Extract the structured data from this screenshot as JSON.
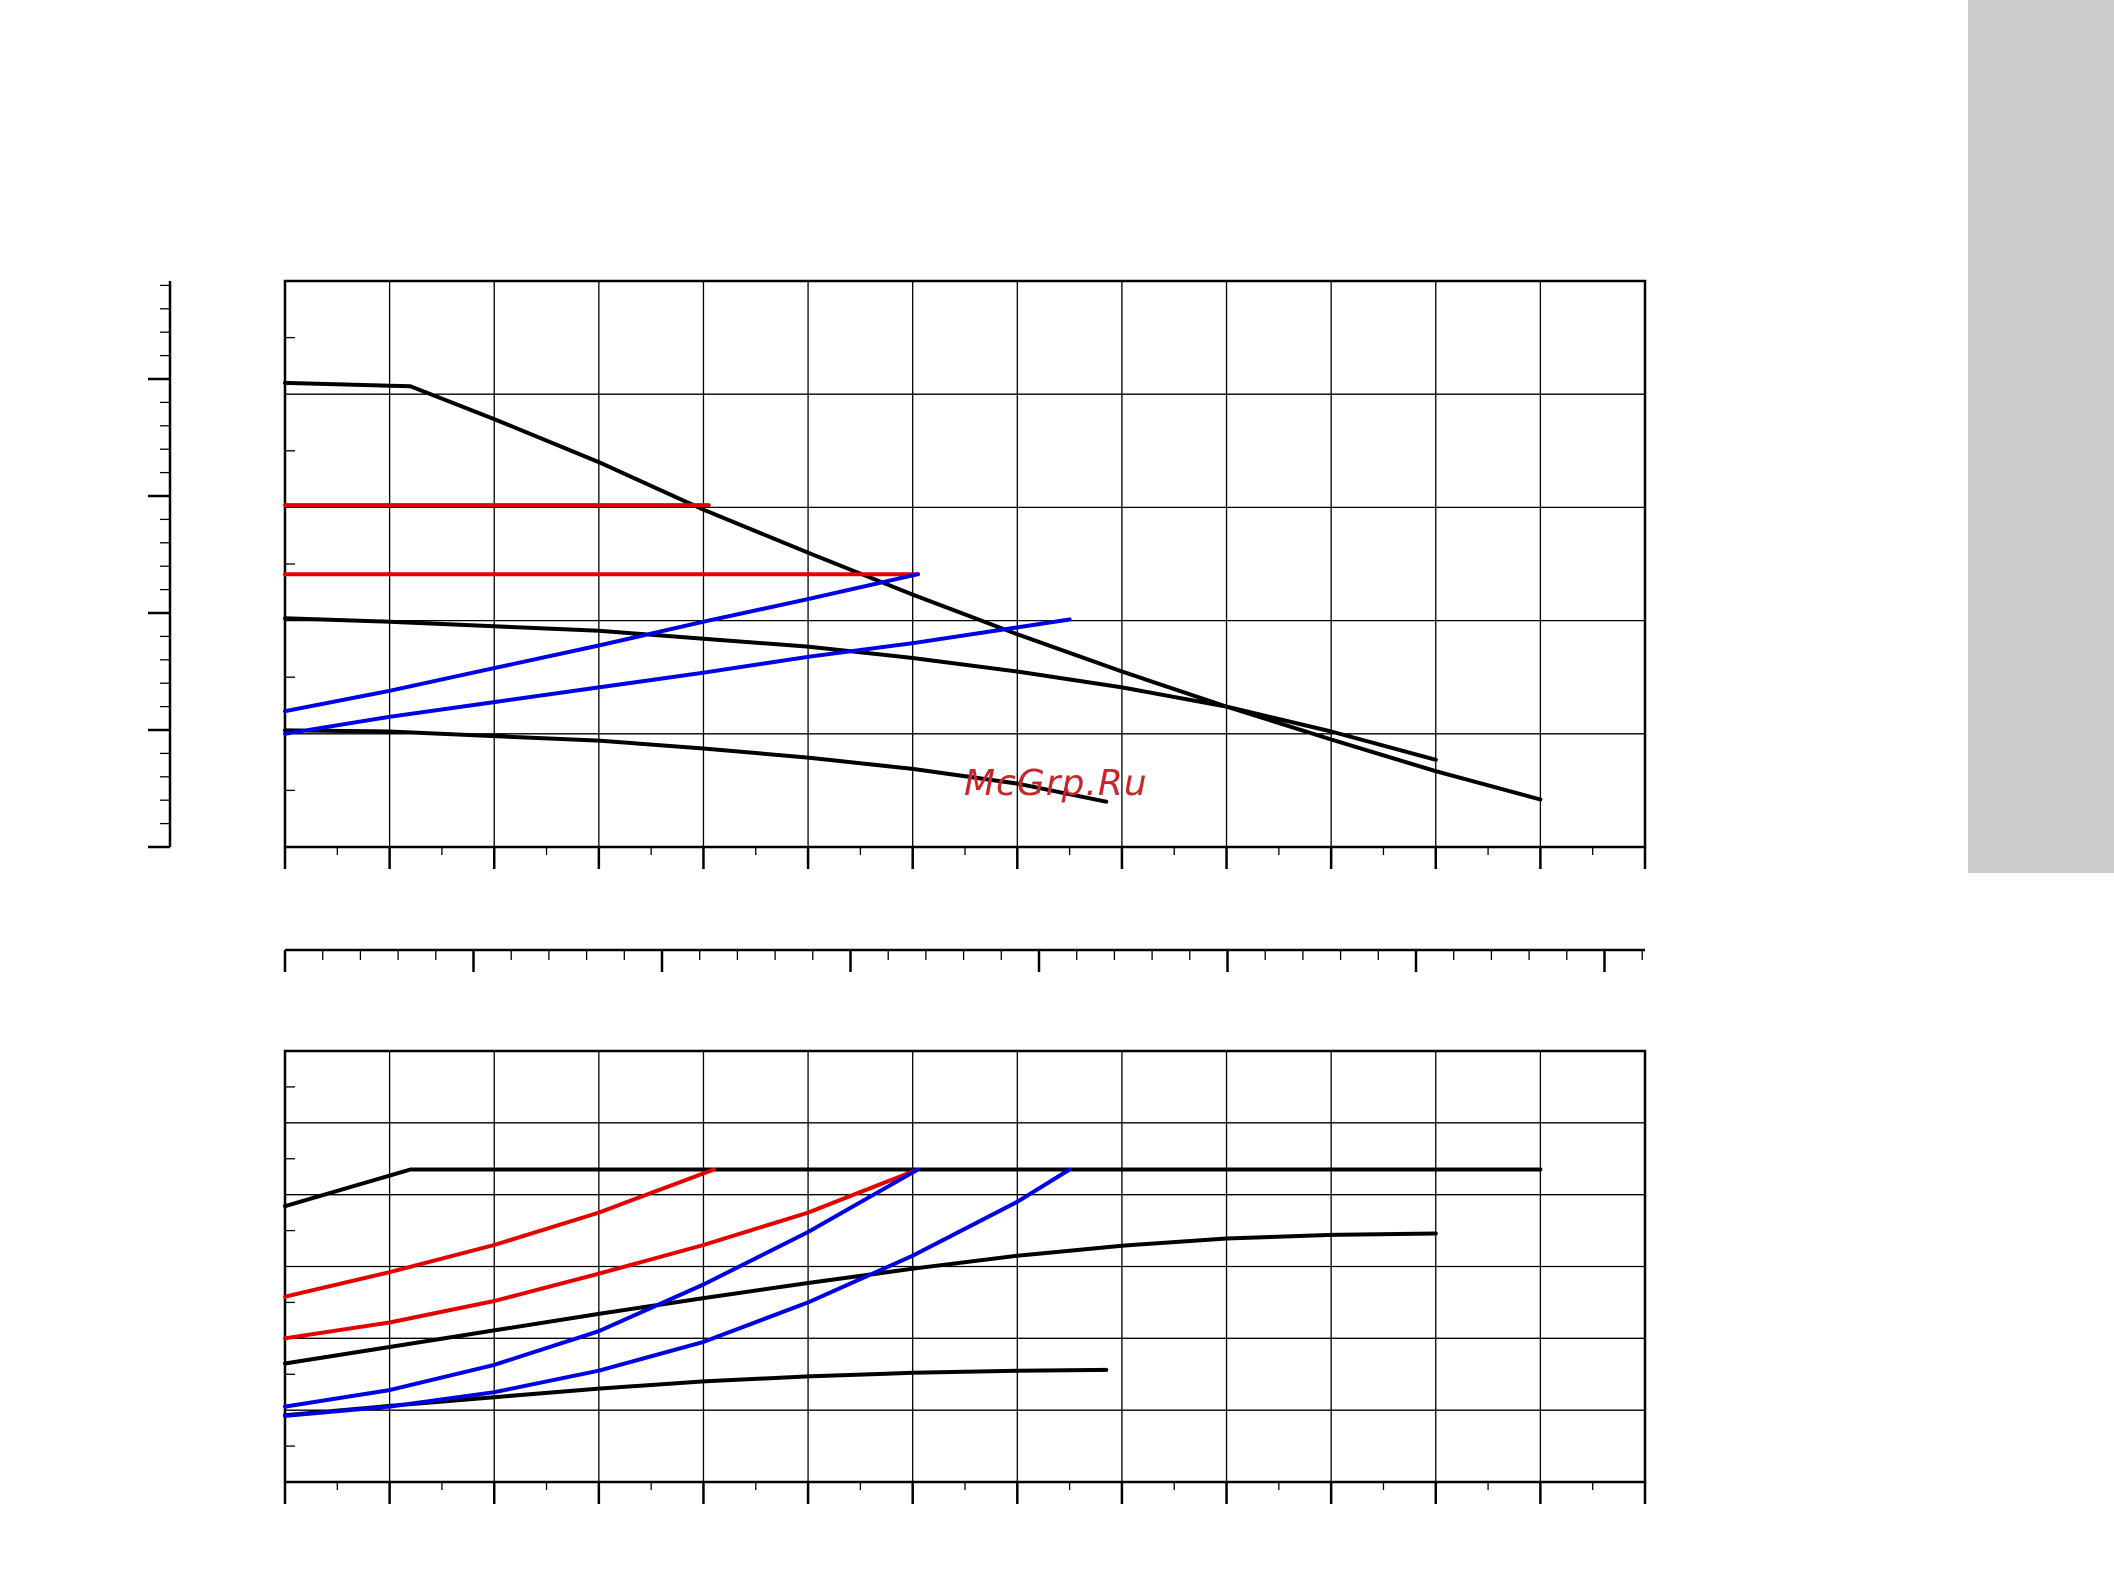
{
  "page": {
    "side_tab_color": "#cccccc",
    "watermark": "McGrp.Ru",
    "watermark_color": "#c8262b"
  },
  "chart_data": [
    {
      "type": "line",
      "title": "",
      "xlabel": "",
      "ylabel": "",
      "xlim": [
        0,
        13
      ],
      "ylim": [
        0,
        5
      ],
      "grid": true,
      "x_tick_labels": [],
      "y_tick_labels": [],
      "series": [
        {
          "color": "#000000",
          "x": [
            0,
            1.2,
            2,
            3,
            4,
            5,
            6,
            7,
            8,
            9,
            10,
            11,
            12
          ],
          "y": [
            4.1,
            4.07,
            3.78,
            3.4,
            2.98,
            2.6,
            2.23,
            1.88,
            1.55,
            1.24,
            0.95,
            0.67,
            0.42
          ]
        },
        {
          "color": "#000000",
          "x": [
            0,
            1,
            2,
            3,
            4,
            5,
            6,
            7,
            8,
            9,
            10,
            11
          ],
          "y": [
            2.02,
            1.99,
            1.95,
            1.91,
            1.84,
            1.77,
            1.67,
            1.55,
            1.41,
            1.24,
            1.02,
            0.77
          ]
        },
        {
          "color": "#000000",
          "x": [
            0,
            1,
            2,
            3,
            4,
            5,
            6,
            7,
            7.85
          ],
          "y": [
            1.03,
            1.02,
            0.98,
            0.94,
            0.87,
            0.79,
            0.69,
            0.56,
            0.4
          ]
        },
        {
          "color": "#e50000",
          "x": [
            0,
            4.05
          ],
          "y": [
            3.02,
            3.02
          ]
        },
        {
          "color": "#e50000",
          "x": [
            0,
            6.05
          ],
          "y": [
            2.41,
            2.41
          ]
        },
        {
          "color": "#0000e5",
          "x": [
            0,
            1,
            2,
            3,
            4,
            5,
            6.05
          ],
          "y": [
            1.2,
            1.38,
            1.58,
            1.78,
            1.99,
            2.19,
            2.41
          ]
        },
        {
          "color": "#0000e5",
          "x": [
            0,
            1,
            2,
            3,
            4,
            5,
            6,
            7,
            7.5
          ],
          "y": [
            1.0,
            1.15,
            1.28,
            1.41,
            1.54,
            1.68,
            1.8,
            1.94,
            2.01
          ]
        }
      ]
    },
    {
      "type": "line",
      "title": "",
      "xlabel": "",
      "ylabel": "",
      "xlim": [
        0,
        13
      ],
      "ylim": [
        0,
        6
      ],
      "grid": true,
      "x_tick_labels": [],
      "y_tick_labels": [],
      "series": [
        {
          "color": "#000000",
          "x": [
            0,
            1.2,
            12
          ],
          "y": [
            3.84,
            4.35,
            4.35
          ]
        },
        {
          "color": "#000000",
          "x": [
            0,
            1,
            2,
            3,
            4,
            5,
            6,
            7,
            8,
            9,
            10,
            11
          ],
          "y": [
            1.65,
            1.88,
            2.11,
            2.34,
            2.56,
            2.77,
            2.97,
            3.15,
            3.29,
            3.39,
            3.44,
            3.46
          ]
        },
        {
          "color": "#000000",
          "x": [
            0,
            1,
            2,
            3,
            4,
            5,
            6,
            7,
            7.85
          ],
          "y": [
            0.93,
            1.06,
            1.18,
            1.3,
            1.4,
            1.47,
            1.52,
            1.55,
            1.56
          ]
        },
        {
          "color": "#e50000",
          "x": [
            0,
            1,
            2,
            3,
            4.1
          ],
          "y": [
            2.58,
            2.92,
            3.3,
            3.75,
            4.35
          ]
        },
        {
          "color": "#e50000",
          "x": [
            0,
            1,
            2,
            3,
            4,
            5,
            6.05
          ],
          "y": [
            2.0,
            2.22,
            2.52,
            2.9,
            3.3,
            3.75,
            4.35
          ]
        },
        {
          "color": "#0000e5",
          "x": [
            0,
            1,
            2,
            3,
            4,
            5,
            6.05
          ],
          "y": [
            1.05,
            1.28,
            1.63,
            2.1,
            2.75,
            3.48,
            4.35
          ]
        },
        {
          "color": "#0000e5",
          "x": [
            0,
            1,
            2,
            3,
            4,
            5,
            6,
            7,
            7.5
          ],
          "y": [
            0.92,
            1.05,
            1.25,
            1.55,
            1.95,
            2.5,
            3.15,
            3.9,
            4.35
          ]
        }
      ]
    }
  ]
}
